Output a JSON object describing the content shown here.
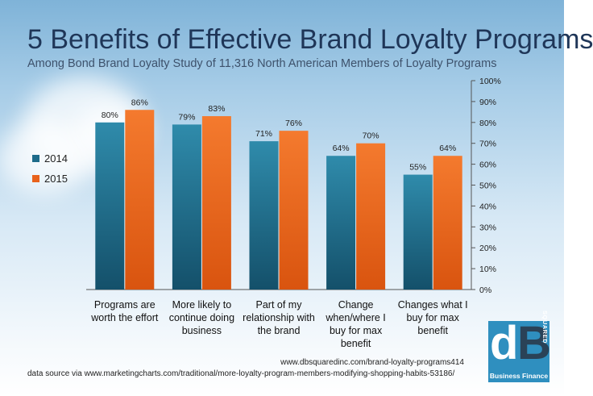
{
  "header": {
    "title": "5 Benefits of Effective Brand Loyalty Programs",
    "subtitle": "Among Bond Brand Loyalty Study of 11,316 North American Members of Loyalty Programs"
  },
  "footer": {
    "url": "www.dbsquaredinc.com/brand-loyalty-programs414",
    "source": "data source via www.marketingcharts.com/traditional/more-loyalty-program-members-modifying-shopping-habits-53186/"
  },
  "logo": {
    "letter_d": "d",
    "letter_b": "B",
    "squared": "SQUARED",
    "tagline": "Business Finance"
  },
  "chart_data": {
    "type": "bar",
    "title": "5 Benefits of Effective Brand Loyalty Programs",
    "subtitle": "Among Bond Brand Loyalty Study of 11,316 North American Members of Loyalty Programs",
    "categories": [
      [
        "Programs are",
        "worth the effort"
      ],
      [
        "More likely to",
        "continue doing",
        "business"
      ],
      [
        "Part of my",
        "relationship with",
        "the brand"
      ],
      [
        "Change",
        "when/where I",
        "buy for max",
        "benefit"
      ],
      [
        "Changes what I",
        "buy for max",
        "benefit"
      ]
    ],
    "series": [
      {
        "name": "2014",
        "color": "#1d6b8a",
        "values": [
          80,
          79,
          71,
          64,
          55
        ]
      },
      {
        "name": "2015",
        "color": "#e8621c",
        "values": [
          86,
          83,
          76,
          70,
          64
        ]
      }
    ],
    "ylim": [
      0,
      100
    ],
    "yticks": [
      "0%",
      "10%",
      "20%",
      "30%",
      "40%",
      "50%",
      "60%",
      "70%",
      "80%",
      "90%",
      "100%"
    ],
    "value_suffix": "%",
    "legend_position": "left",
    "grid": false
  }
}
